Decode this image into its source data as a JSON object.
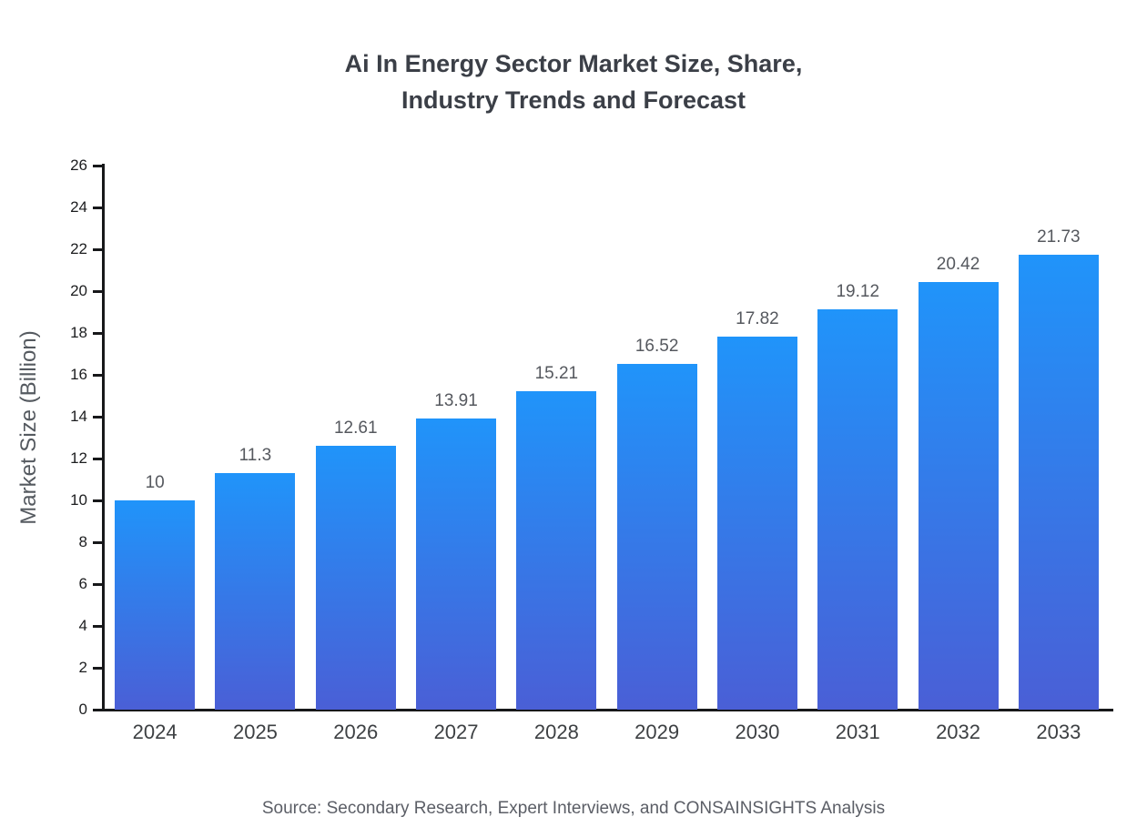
{
  "header": {
    "title": "Ai In Energy Sector Market Size, Share,\nIndustry Trends and Forecast"
  },
  "footer": {
    "source": "Source: Secondary Research, Expert Interviews, and CONSAINSIGHTS Analysis"
  },
  "chart_data": {
    "type": "bar",
    "title": "Ai In Energy Sector Market Size, Share, Industry Trends and Forecast",
    "categories": [
      "2024",
      "2025",
      "2026",
      "2027",
      "2028",
      "2029",
      "2030",
      "2031",
      "2032",
      "2033"
    ],
    "values": [
      10,
      11.3,
      12.61,
      13.91,
      15.21,
      16.52,
      17.82,
      19.12,
      20.42,
      21.73
    ],
    "value_labels": [
      "10",
      "11.3",
      "12.61",
      "13.91",
      "15.21",
      "16.52",
      "17.82",
      "19.12",
      "20.42",
      "21.73"
    ],
    "xlabel": "",
    "ylabel": "Market Size (Billion)",
    "ylim": [
      0,
      26
    ],
    "yticks": [
      0,
      2,
      4,
      6,
      8,
      10,
      12,
      14,
      16,
      18,
      20,
      22,
      24,
      26
    ],
    "grid": false,
    "legend": "none",
    "bar_color_top": "#2094fa",
    "bar_color_bottom": "#4a5fd6",
    "axis_color": "#17181a"
  }
}
